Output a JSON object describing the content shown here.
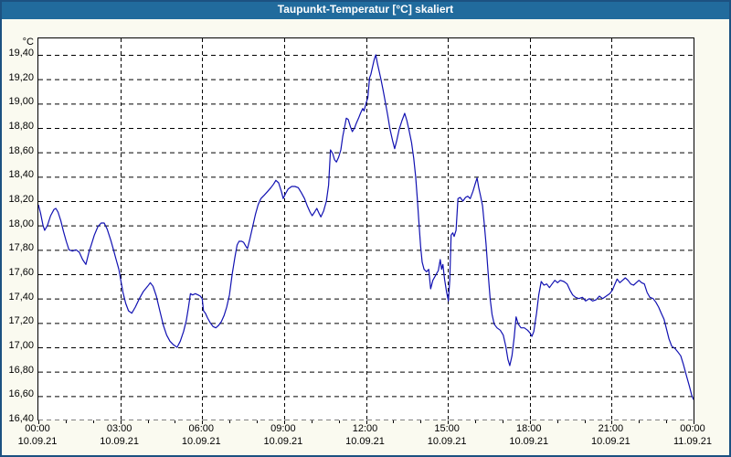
{
  "title": "Taupunkt-Temperatur [°C] skaliert",
  "colors": {
    "title_bar": "#216b9d",
    "frame": "#1c5181",
    "background": "#fafaf0",
    "plot_background": "#ffffff",
    "line": "#1111b2",
    "grid": "#000000",
    "title_text": "#ffffff"
  },
  "chart_data": {
    "type": "line",
    "title": "Taupunkt-Temperatur [°C] skaliert",
    "unit_label": "°C",
    "xlabel": "",
    "ylabel": "Taupunkt-Temperatur [°C]",
    "grid": "dashed",
    "legend": "none",
    "x_range_hours": [
      0,
      24
    ],
    "y_range": [
      16.4,
      19.535
    ],
    "y_tick_step": 0.2,
    "minor_x_tick_hours": 1,
    "y_ticks": [
      {
        "label": "19,40",
        "value": 19.4
      },
      {
        "label": "19,20",
        "value": 19.2
      },
      {
        "label": "19,00",
        "value": 19.0
      },
      {
        "label": "18,80",
        "value": 18.8
      },
      {
        "label": "18,60",
        "value": 18.6
      },
      {
        "label": "18,40",
        "value": 18.4
      },
      {
        "label": "18,20",
        "value": 18.2
      },
      {
        "label": "18,00",
        "value": 18.0
      },
      {
        "label": "17,80",
        "value": 17.8
      },
      {
        "label": "17,60",
        "value": 17.6
      },
      {
        "label": "17,40",
        "value": 17.4
      },
      {
        "label": "17,20",
        "value": 17.2
      },
      {
        "label": "17,00",
        "value": 17.0
      },
      {
        "label": "16,80",
        "value": 16.8
      },
      {
        "label": "16,60",
        "value": 16.6
      },
      {
        "label": "16,40",
        "value": 16.4
      }
    ],
    "x_ticks": [
      {
        "time": "00:00",
        "date": "10.09.21",
        "t": 0
      },
      {
        "time": "03:00",
        "date": "10.09.21",
        "t": 3
      },
      {
        "time": "06:00",
        "date": "10.09.21",
        "t": 6
      },
      {
        "time": "09:00",
        "date": "10.09.21",
        "t": 9
      },
      {
        "time": "12:00",
        "date": "10.09.21",
        "t": 12
      },
      {
        "time": "15:00",
        "date": "10.09.21",
        "t": 15
      },
      {
        "time": "18:00",
        "date": "10.09.21",
        "t": 18
      },
      {
        "time": "21:00",
        "date": "10.09.21",
        "t": 21
      },
      {
        "time": "00:00",
        "date": "11.09.21",
        "t": 24
      }
    ],
    "series": [
      {
        "name": "Taupunkt-Temperatur",
        "color": "#1111b2",
        "points": [
          [
            0.0,
            18.17
          ],
          [
            0.08,
            18.1
          ],
          [
            0.17,
            18.0
          ],
          [
            0.23,
            17.96
          ],
          [
            0.33,
            18.0
          ],
          [
            0.45,
            18.08
          ],
          [
            0.57,
            18.13
          ],
          [
            0.64,
            18.14
          ],
          [
            0.72,
            18.11
          ],
          [
            0.82,
            18.04
          ],
          [
            0.92,
            17.95
          ],
          [
            1.02,
            17.87
          ],
          [
            1.12,
            17.8
          ],
          [
            1.25,
            17.79
          ],
          [
            1.38,
            17.8
          ],
          [
            1.5,
            17.78
          ],
          [
            1.62,
            17.72
          ],
          [
            1.74,
            17.68
          ],
          [
            1.85,
            17.78
          ],
          [
            1.95,
            17.85
          ],
          [
            2.05,
            17.92
          ],
          [
            2.18,
            17.99
          ],
          [
            2.3,
            18.02
          ],
          [
            2.41,
            18.02
          ],
          [
            2.52,
            17.97
          ],
          [
            2.65,
            17.88
          ],
          [
            2.75,
            17.8
          ],
          [
            2.85,
            17.72
          ],
          [
            2.95,
            17.64
          ],
          [
            3.02,
            17.55
          ],
          [
            3.1,
            17.45
          ],
          [
            3.2,
            17.36
          ],
          [
            3.3,
            17.3
          ],
          [
            3.42,
            17.28
          ],
          [
            3.55,
            17.33
          ],
          [
            3.7,
            17.4
          ],
          [
            3.85,
            17.46
          ],
          [
            4.0,
            17.5
          ],
          [
            4.1,
            17.53
          ],
          [
            4.2,
            17.5
          ],
          [
            4.32,
            17.42
          ],
          [
            4.45,
            17.3
          ],
          [
            4.58,
            17.18
          ],
          [
            4.7,
            17.1
          ],
          [
            4.82,
            17.05
          ],
          [
            4.95,
            17.02
          ],
          [
            5.08,
            17.0
          ],
          [
            5.2,
            17.05
          ],
          [
            5.32,
            17.13
          ],
          [
            5.42,
            17.22
          ],
          [
            5.5,
            17.33
          ],
          [
            5.57,
            17.44
          ],
          [
            5.65,
            17.43
          ],
          [
            5.75,
            17.44
          ],
          [
            5.85,
            17.43
          ],
          [
            5.93,
            17.42
          ],
          [
            6.0,
            17.4
          ],
          [
            6.05,
            17.3
          ],
          [
            6.12,
            17.28
          ],
          [
            6.2,
            17.24
          ],
          [
            6.3,
            17.2
          ],
          [
            6.4,
            17.17
          ],
          [
            6.5,
            17.16
          ],
          [
            6.6,
            17.18
          ],
          [
            6.7,
            17.21
          ],
          [
            6.8,
            17.26
          ],
          [
            6.9,
            17.33
          ],
          [
            7.0,
            17.43
          ],
          [
            7.1,
            17.6
          ],
          [
            7.2,
            17.74
          ],
          [
            7.28,
            17.84
          ],
          [
            7.35,
            17.87
          ],
          [
            7.45,
            17.87
          ],
          [
            7.52,
            17.86
          ],
          [
            7.6,
            17.83
          ],
          [
            7.66,
            17.81
          ],
          [
            7.75,
            17.89
          ],
          [
            7.85,
            17.99
          ],
          [
            7.95,
            18.09
          ],
          [
            8.05,
            18.17
          ],
          [
            8.15,
            18.22
          ],
          [
            8.28,
            18.25
          ],
          [
            8.4,
            18.28
          ],
          [
            8.52,
            18.31
          ],
          [
            8.62,
            18.34
          ],
          [
            8.7,
            18.37
          ],
          [
            8.8,
            18.35
          ],
          [
            8.9,
            18.28
          ],
          [
            8.97,
            18.22
          ],
          [
            9.05,
            18.26
          ],
          [
            9.15,
            18.3
          ],
          [
            9.28,
            18.32
          ],
          [
            9.4,
            18.32
          ],
          [
            9.52,
            18.31
          ],
          [
            9.63,
            18.27
          ],
          [
            9.75,
            18.22
          ],
          [
            9.85,
            18.16
          ],
          [
            9.95,
            18.11
          ],
          [
            10.03,
            18.08
          ],
          [
            10.12,
            18.11
          ],
          [
            10.2,
            18.14
          ],
          [
            10.28,
            18.1
          ],
          [
            10.35,
            18.07
          ],
          [
            10.45,
            18.12
          ],
          [
            10.55,
            18.2
          ],
          [
            10.63,
            18.33
          ],
          [
            10.7,
            18.62
          ],
          [
            10.78,
            18.59
          ],
          [
            10.85,
            18.54
          ],
          [
            10.92,
            18.52
          ],
          [
            11.0,
            18.56
          ],
          [
            11.08,
            18.62
          ],
          [
            11.15,
            18.73
          ],
          [
            11.22,
            18.81
          ],
          [
            11.28,
            18.88
          ],
          [
            11.35,
            18.87
          ],
          [
            11.43,
            18.81
          ],
          [
            11.5,
            18.77
          ],
          [
            11.58,
            18.8
          ],
          [
            11.65,
            18.84
          ],
          [
            11.73,
            18.88
          ],
          [
            11.8,
            18.92
          ],
          [
            11.88,
            18.96
          ],
          [
            11.93,
            18.94
          ],
          [
            12.0,
            19.0
          ],
          [
            12.07,
            19.05
          ],
          [
            12.13,
            19.21
          ],
          [
            12.18,
            19.24
          ],
          [
            12.24,
            19.3
          ],
          [
            12.3,
            19.36
          ],
          [
            12.36,
            19.4
          ],
          [
            12.42,
            19.33
          ],
          [
            12.48,
            19.27
          ],
          [
            12.55,
            19.2
          ],
          [
            12.63,
            19.11
          ],
          [
            12.72,
            19.0
          ],
          [
            12.8,
            18.9
          ],
          [
            12.88,
            18.79
          ],
          [
            12.97,
            18.7
          ],
          [
            13.05,
            18.63
          ],
          [
            13.13,
            18.7
          ],
          [
            13.22,
            18.79
          ],
          [
            13.32,
            18.86
          ],
          [
            13.42,
            18.92
          ],
          [
            13.5,
            18.86
          ],
          [
            13.58,
            18.78
          ],
          [
            13.67,
            18.68
          ],
          [
            13.75,
            18.55
          ],
          [
            13.82,
            18.4
          ],
          [
            13.88,
            18.22
          ],
          [
            13.94,
            18.02
          ],
          [
            14.0,
            17.83
          ],
          [
            14.06,
            17.7
          ],
          [
            14.13,
            17.64
          ],
          [
            14.22,
            17.62
          ],
          [
            14.3,
            17.64
          ],
          [
            14.37,
            17.48
          ],
          [
            14.45,
            17.55
          ],
          [
            14.55,
            17.59
          ],
          [
            14.65,
            17.63
          ],
          [
            14.72,
            17.72
          ],
          [
            14.77,
            17.64
          ],
          [
            14.82,
            17.68
          ],
          [
            14.88,
            17.56
          ],
          [
            14.95,
            17.46
          ],
          [
            15.02,
            17.38
          ],
          [
            15.07,
            17.55
          ],
          [
            15.12,
            17.92
          ],
          [
            15.18,
            17.94
          ],
          [
            15.23,
            17.91
          ],
          [
            15.3,
            17.96
          ],
          [
            15.37,
            18.22
          ],
          [
            15.45,
            18.23
          ],
          [
            15.55,
            18.2
          ],
          [
            15.65,
            18.23
          ],
          [
            15.73,
            18.24
          ],
          [
            15.82,
            18.22
          ],
          [
            15.92,
            18.28
          ],
          [
            16.0,
            18.34
          ],
          [
            16.07,
            18.39
          ],
          [
            16.13,
            18.31
          ],
          [
            16.2,
            18.24
          ],
          [
            16.27,
            18.16
          ],
          [
            16.33,
            18.02
          ],
          [
            16.4,
            17.85
          ],
          [
            16.48,
            17.6
          ],
          [
            16.55,
            17.4
          ],
          [
            16.62,
            17.27
          ],
          [
            16.7,
            17.19
          ],
          [
            16.8,
            17.16
          ],
          [
            16.92,
            17.14
          ],
          [
            17.03,
            17.1
          ],
          [
            17.12,
            17.01
          ],
          [
            17.2,
            16.9
          ],
          [
            17.27,
            16.85
          ],
          [
            17.35,
            16.93
          ],
          [
            17.43,
            17.08
          ],
          [
            17.5,
            17.25
          ],
          [
            17.58,
            17.19
          ],
          [
            17.68,
            17.16
          ],
          [
            17.8,
            17.16
          ],
          [
            17.92,
            17.14
          ],
          [
            18.0,
            17.12
          ],
          [
            18.08,
            17.09
          ],
          [
            18.15,
            17.13
          ],
          [
            18.25,
            17.28
          ],
          [
            18.33,
            17.43
          ],
          [
            18.42,
            17.54
          ],
          [
            18.52,
            17.51
          ],
          [
            18.62,
            17.52
          ],
          [
            18.72,
            17.49
          ],
          [
            18.82,
            17.52
          ],
          [
            18.92,
            17.55
          ],
          [
            19.02,
            17.53
          ],
          [
            19.12,
            17.55
          ],
          [
            19.25,
            17.54
          ],
          [
            19.37,
            17.52
          ],
          [
            19.47,
            17.47
          ],
          [
            19.57,
            17.43
          ],
          [
            19.68,
            17.41
          ],
          [
            19.8,
            17.4
          ],
          [
            19.93,
            17.41
          ],
          [
            20.05,
            17.38
          ],
          [
            20.18,
            17.4
          ],
          [
            20.3,
            17.38
          ],
          [
            20.43,
            17.39
          ],
          [
            20.55,
            17.42
          ],
          [
            20.67,
            17.4
          ],
          [
            20.8,
            17.42
          ],
          [
            20.93,
            17.44
          ],
          [
            21.03,
            17.47
          ],
          [
            21.12,
            17.52
          ],
          [
            21.2,
            17.56
          ],
          [
            21.3,
            17.53
          ],
          [
            21.4,
            17.55
          ],
          [
            21.5,
            17.57
          ],
          [
            21.6,
            17.55
          ],
          [
            21.7,
            17.52
          ],
          [
            21.8,
            17.51
          ],
          [
            21.9,
            17.53
          ],
          [
            22.0,
            17.55
          ],
          [
            22.1,
            17.53
          ],
          [
            22.2,
            17.52
          ],
          [
            22.3,
            17.45
          ],
          [
            22.4,
            17.41
          ],
          [
            22.52,
            17.4
          ],
          [
            22.62,
            17.37
          ],
          [
            22.72,
            17.33
          ],
          [
            22.82,
            17.28
          ],
          [
            22.92,
            17.23
          ],
          [
            23.0,
            17.16
          ],
          [
            23.1,
            17.07
          ],
          [
            23.2,
            17.01
          ],
          [
            23.32,
            16.99
          ],
          [
            23.43,
            16.96
          ],
          [
            23.53,
            16.93
          ],
          [
            23.63,
            16.86
          ],
          [
            23.75,
            16.76
          ],
          [
            23.85,
            16.68
          ],
          [
            23.93,
            16.61
          ],
          [
            24.0,
            16.57
          ]
        ]
      }
    ]
  }
}
